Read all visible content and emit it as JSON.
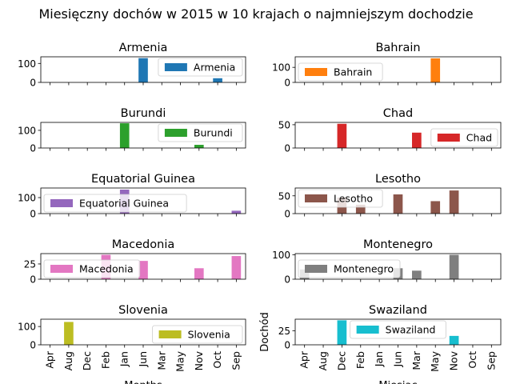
{
  "page_title": "Miesięczny dochów w 2015 w 10 krajach o najmniejszym dochodzie",
  "chart_data": {
    "type": "bar",
    "title": "Miesięczny dochów w 2015 w 10 krajach o najmniejszym dochodzie",
    "categories": [
      "Apr",
      "Aug",
      "Dec",
      "Feb",
      "Jan",
      "Jun",
      "Mar",
      "May",
      "Nov",
      "Oct",
      "Sep"
    ],
    "xlabel_left": "Months",
    "xlabel_right": "Miesiac",
    "ylabel_right": "Dochód",
    "colors": {
      "Armenia": "#1f77b4",
      "Bahrain": "#ff7f0e",
      "Burundi": "#2ca02c",
      "Chad": "#d62728",
      "Equatorial Guinea": "#9467bd",
      "Lesotho": "#8c564b",
      "Macedonia": "#e377c2",
      "Montenegro": "#7f7f7f",
      "Slovenia": "#bcbd22",
      "Swaziland": "#17becf"
    },
    "series": [
      {
        "name": "Armenia",
        "ylim": [
          0,
          135
        ],
        "yticks": [
          "0",
          "100"
        ],
        "yticks_values": [
          0,
          100
        ],
        "legend": "top-right",
        "values": [
          0,
          0,
          0,
          0,
          0,
          128,
          0,
          0,
          0,
          22,
          0
        ]
      },
      {
        "name": "Bahrain",
        "ylim": [
          0,
          170
        ],
        "yticks": [
          "0",
          "100"
        ],
        "yticks_values": [
          0,
          100
        ],
        "legend": "bottom-left",
        "values": [
          0,
          0,
          0,
          0,
          0,
          0,
          0,
          160,
          0,
          0,
          0
        ]
      },
      {
        "name": "Burundi",
        "ylim": [
          0,
          145
        ],
        "yticks": [
          "0",
          "100"
        ],
        "yticks_values": [
          0,
          100
        ],
        "legend": "top-right",
        "values": [
          0,
          0,
          0,
          0,
          140,
          0,
          0,
          0,
          18,
          0,
          0
        ]
      },
      {
        "name": "Chad",
        "ylim": [
          0,
          55
        ],
        "yticks": [
          "0",
          "50"
        ],
        "yticks_values": [
          0,
          50
        ],
        "legend": "bottom-right",
        "values": [
          0,
          0,
          52,
          0,
          0,
          0,
          33,
          0,
          0,
          0,
          0
        ]
      },
      {
        "name": "Equatorial Guinea",
        "ylim": [
          0,
          160
        ],
        "yticks": [
          "0",
          "100"
        ],
        "yticks_values": [
          0,
          100
        ],
        "legend": "bottom-left",
        "values": [
          0,
          0,
          0,
          0,
          150,
          0,
          0,
          0,
          0,
          0,
          18
        ]
      },
      {
        "name": "Lesotho",
        "ylim": [
          0,
          72
        ],
        "yticks": [
          "0",
          "50"
        ],
        "yticks_values": [
          0,
          50
        ],
        "legend": "top-left",
        "values": [
          0,
          0,
          45,
          25,
          0,
          54,
          0,
          35,
          65,
          0,
          0
        ]
      },
      {
        "name": "Macedonia",
        "ylim": [
          0,
          42
        ],
        "yticks": [
          "0",
          "25"
        ],
        "yticks_values": [
          0,
          25
        ],
        "legend": "bottom-left",
        "values": [
          0,
          0,
          0,
          40,
          0,
          30,
          0,
          0,
          18,
          0,
          38
        ]
      },
      {
        "name": "Montenegro",
        "ylim": [
          0,
          105
        ],
        "yticks": [
          "0",
          "100"
        ],
        "yticks_values": [
          0,
          100
        ],
        "legend": "bottom-left",
        "values": [
          40,
          0,
          0,
          0,
          0,
          45,
          35,
          0,
          100,
          0,
          0
        ]
      },
      {
        "name": "Slovenia",
        "ylim": [
          0,
          140
        ],
        "yticks": [
          "0",
          "100"
        ],
        "yticks_values": [
          0,
          100
        ],
        "legend": "bottom-right",
        "values": [
          0,
          125,
          0,
          0,
          0,
          0,
          0,
          0,
          0,
          0,
          0
        ]
      },
      {
        "name": "Swaziland",
        "ylim": [
          0,
          46
        ],
        "yticks": [
          "0",
          "25"
        ],
        "yticks_values": [
          0,
          25
        ],
        "legend": "top-center",
        "values": [
          0,
          0,
          44,
          0,
          0,
          0,
          0,
          0,
          16,
          0,
          0
        ]
      }
    ]
  }
}
